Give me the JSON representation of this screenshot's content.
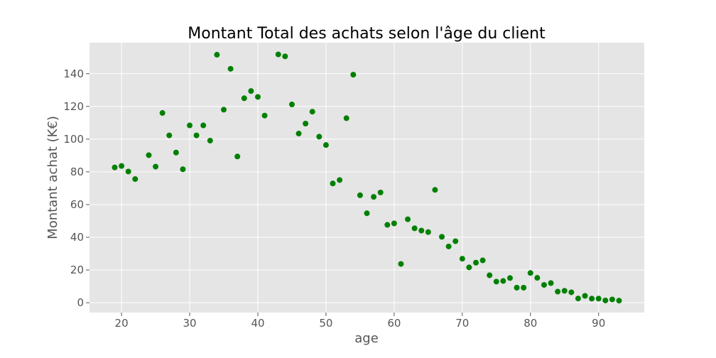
{
  "chart_data": {
    "type": "scatter",
    "title": "Montant Total des achats selon l'âge du client",
    "xlabel": "age",
    "ylabel": "Montant achat (K€)",
    "xlim": [
      15.3,
      96.7
    ],
    "ylim": [
      -6,
      159
    ],
    "xticks": [
      20,
      30,
      40,
      50,
      60,
      70,
      80,
      90
    ],
    "yticks": [
      0,
      20,
      40,
      60,
      80,
      100,
      120,
      140
    ],
    "grid": true,
    "background": "#e5e5e5",
    "grid_color": "#ffffff",
    "marker_color": "#008000",
    "points": [
      {
        "x": 19,
        "y": 82.7
      },
      {
        "x": 20,
        "y": 83.6
      },
      {
        "x": 21,
        "y": 80.2
      },
      {
        "x": 22,
        "y": 75.6
      },
      {
        "x": 24,
        "y": 90.2
      },
      {
        "x": 25,
        "y": 83.2
      },
      {
        "x": 26,
        "y": 116.0
      },
      {
        "x": 27,
        "y": 102.3
      },
      {
        "x": 28,
        "y": 91.8
      },
      {
        "x": 29,
        "y": 81.6
      },
      {
        "x": 30,
        "y": 108.4
      },
      {
        "x": 31,
        "y": 102.3
      },
      {
        "x": 32,
        "y": 108.4
      },
      {
        "x": 33,
        "y": 99.1
      },
      {
        "x": 34,
        "y": 151.6
      },
      {
        "x": 35,
        "y": 118.0
      },
      {
        "x": 36,
        "y": 143.0
      },
      {
        "x": 37,
        "y": 89.4
      },
      {
        "x": 38,
        "y": 125.0
      },
      {
        "x": 39,
        "y": 129.4
      },
      {
        "x": 40,
        "y": 125.8
      },
      {
        "x": 41,
        "y": 114.4
      },
      {
        "x": 43,
        "y": 151.8
      },
      {
        "x": 44,
        "y": 150.6
      },
      {
        "x": 45,
        "y": 121.2
      },
      {
        "x": 46,
        "y": 103.4
      },
      {
        "x": 47,
        "y": 109.5
      },
      {
        "x": 48,
        "y": 116.8
      },
      {
        "x": 49,
        "y": 101.5
      },
      {
        "x": 50,
        "y": 96.4
      },
      {
        "x": 51,
        "y": 72.9
      },
      {
        "x": 52,
        "y": 75.0
      },
      {
        "x": 53,
        "y": 112.8
      },
      {
        "x": 54,
        "y": 139.4
      },
      {
        "x": 55,
        "y": 65.7
      },
      {
        "x": 56,
        "y": 54.7
      },
      {
        "x": 57,
        "y": 64.7
      },
      {
        "x": 58,
        "y": 67.4
      },
      {
        "x": 59,
        "y": 47.6
      },
      {
        "x": 60,
        "y": 48.5
      },
      {
        "x": 61,
        "y": 23.7
      },
      {
        "x": 62,
        "y": 51.0
      },
      {
        "x": 63,
        "y": 45.5
      },
      {
        "x": 64,
        "y": 44.1
      },
      {
        "x": 65,
        "y": 43.2
      },
      {
        "x": 66,
        "y": 69.0
      },
      {
        "x": 67,
        "y": 40.3
      },
      {
        "x": 68,
        "y": 34.4
      },
      {
        "x": 69,
        "y": 37.6
      },
      {
        "x": 70,
        "y": 26.9
      },
      {
        "x": 71,
        "y": 21.6
      },
      {
        "x": 72,
        "y": 24.5
      },
      {
        "x": 73,
        "y": 25.9
      },
      {
        "x": 74,
        "y": 16.8
      },
      {
        "x": 75,
        "y": 12.9
      },
      {
        "x": 76,
        "y": 13.3
      },
      {
        "x": 77,
        "y": 15.1
      },
      {
        "x": 78,
        "y": 9.2
      },
      {
        "x": 79,
        "y": 9.2
      },
      {
        "x": 80,
        "y": 18.2
      },
      {
        "x": 81,
        "y": 15.2
      },
      {
        "x": 82,
        "y": 10.9
      },
      {
        "x": 83,
        "y": 12.0
      },
      {
        "x": 84,
        "y": 6.8
      },
      {
        "x": 85,
        "y": 7.3
      },
      {
        "x": 86,
        "y": 6.4
      },
      {
        "x": 87,
        "y": 2.6
      },
      {
        "x": 88,
        "y": 4.2
      },
      {
        "x": 89,
        "y": 2.5
      },
      {
        "x": 90,
        "y": 2.5
      },
      {
        "x": 91,
        "y": 1.4
      },
      {
        "x": 92,
        "y": 2.0
      },
      {
        "x": 93,
        "y": 1.3
      }
    ]
  }
}
